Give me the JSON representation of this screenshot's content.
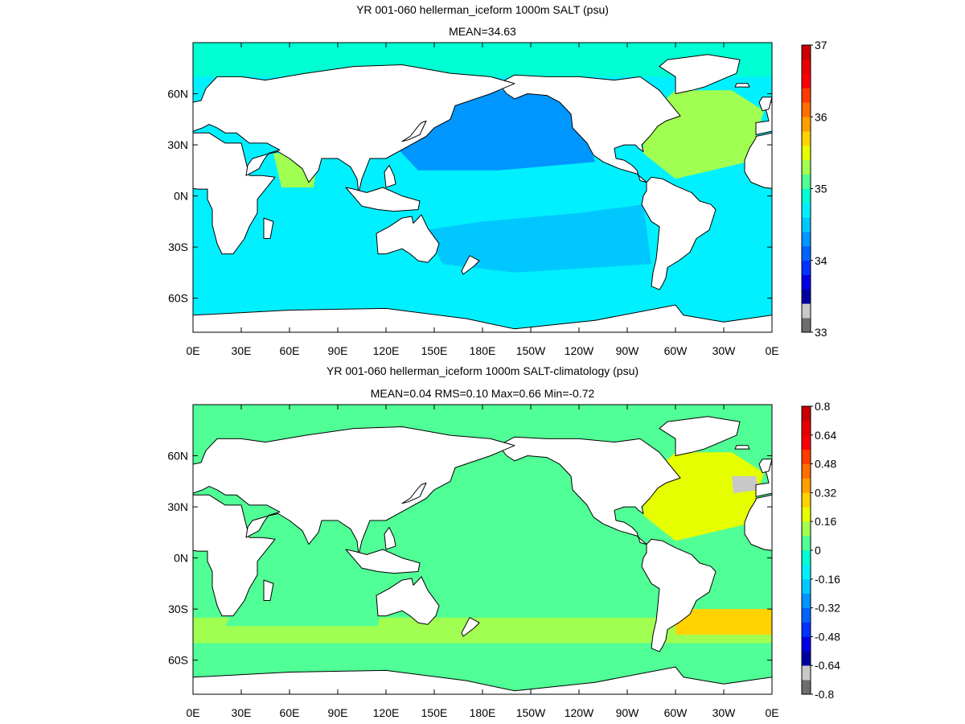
{
  "chart_data": [
    {
      "type": "heatmap",
      "title": "YR 001-060 hellerman_iceform 1000m SALT (psu)",
      "subtitle": "MEAN=34.63",
      "x_ticks": [
        "0E",
        "30E",
        "60E",
        "90E",
        "120E",
        "150E",
        "180E",
        "150W",
        "120W",
        "90W",
        "60W",
        "30W",
        "0E"
      ],
      "y_ticks": [
        "60N",
        "30N",
        "0N",
        "30S",
        "60S"
      ],
      "y_tick_values": [
        60,
        30,
        0,
        -30,
        -60
      ],
      "xlim": [
        0,
        360
      ],
      "ylim": [
        -80,
        90
      ],
      "colorbar": {
        "min": 33,
        "max": 37,
        "labels": [
          "37",
          "36",
          "35",
          "34",
          "33"
        ],
        "label_values": [
          37,
          36,
          35,
          34,
          33
        ],
        "colors": [
          "#6e6e6e",
          "#c8c8c8",
          "#0000a0",
          "#0000e6",
          "#0032ff",
          "#0064ff",
          "#0096ff",
          "#00c8ff",
          "#00f0ff",
          "#00ffd2",
          "#50ff96",
          "#a0ff50",
          "#e6ff00",
          "#ffd200",
          "#ffa000",
          "#ff6e00",
          "#ff3c00",
          "#ff0000",
          "#e60000",
          "#c80000"
        ]
      },
      "field_mean": 34.63,
      "basins": [
        {
          "name": "north-pacific",
          "value": 34.35
        },
        {
          "name": "south-pacific",
          "value": 34.45
        },
        {
          "name": "southern-ocean",
          "value": 34.6
        },
        {
          "name": "indian-ocean",
          "value": 34.8
        },
        {
          "name": "arabian-sea",
          "value": 35.2
        },
        {
          "name": "north-atlantic",
          "value": 35.25
        },
        {
          "name": "south-atlantic",
          "value": 34.75
        },
        {
          "name": "arctic",
          "value": 34.9
        }
      ]
    },
    {
      "type": "heatmap",
      "title": "YR 001-060 hellerman_iceform 1000m SALT-climatology (psu)",
      "subtitle": "MEAN=0.04   RMS=0.10   Max=0.66   Min=-0.72",
      "x_ticks": [
        "0E",
        "30E",
        "60E",
        "90E",
        "120E",
        "150E",
        "180E",
        "150W",
        "120W",
        "90W",
        "60W",
        "30W",
        "0E"
      ],
      "y_ticks": [
        "60N",
        "30N",
        "0N",
        "30S",
        "60S"
      ],
      "y_tick_values": [
        60,
        30,
        0,
        -30,
        -60
      ],
      "xlim": [
        0,
        360
      ],
      "ylim": [
        -80,
        90
      ],
      "colorbar": {
        "min": -0.8,
        "max": 0.8,
        "labels": [
          "0.8",
          "0.64",
          "0.48",
          "0.32",
          "0.16",
          "0",
          "-0.16",
          "-0.32",
          "-0.48",
          "-0.64",
          "-0.8"
        ],
        "label_values": [
          0.8,
          0.64,
          0.48,
          0.32,
          0.16,
          0,
          -0.16,
          -0.32,
          -0.48,
          -0.64,
          -0.8
        ],
        "colors": [
          "#6e6e6e",
          "#c8c8c8",
          "#0000a0",
          "#0000e6",
          "#0032ff",
          "#0064ff",
          "#0096ff",
          "#00c8ff",
          "#00f0ff",
          "#00ffd2",
          "#50ff96",
          "#a0ff50",
          "#e6ff00",
          "#ffd200",
          "#ffa000",
          "#ff6e00",
          "#ff3c00",
          "#ff0000",
          "#e60000",
          "#c80000"
        ]
      },
      "stats": {
        "mean": 0.04,
        "rms": 0.1,
        "max": 0.66,
        "min": -0.72
      },
      "basins": [
        {
          "name": "north-pacific",
          "value": 0.02
        },
        {
          "name": "south-pacific",
          "value": 0.03
        },
        {
          "name": "southern-ocean-band",
          "value": 0.15
        },
        {
          "name": "indian-ocean",
          "value": 0.05
        },
        {
          "name": "north-atlantic",
          "value": 0.2
        },
        {
          "name": "gulf-stream-anomaly",
          "value": -0.72
        },
        {
          "name": "south-atlantic-band",
          "value": 0.3
        },
        {
          "name": "arctic",
          "value": 0.05
        }
      ]
    }
  ]
}
